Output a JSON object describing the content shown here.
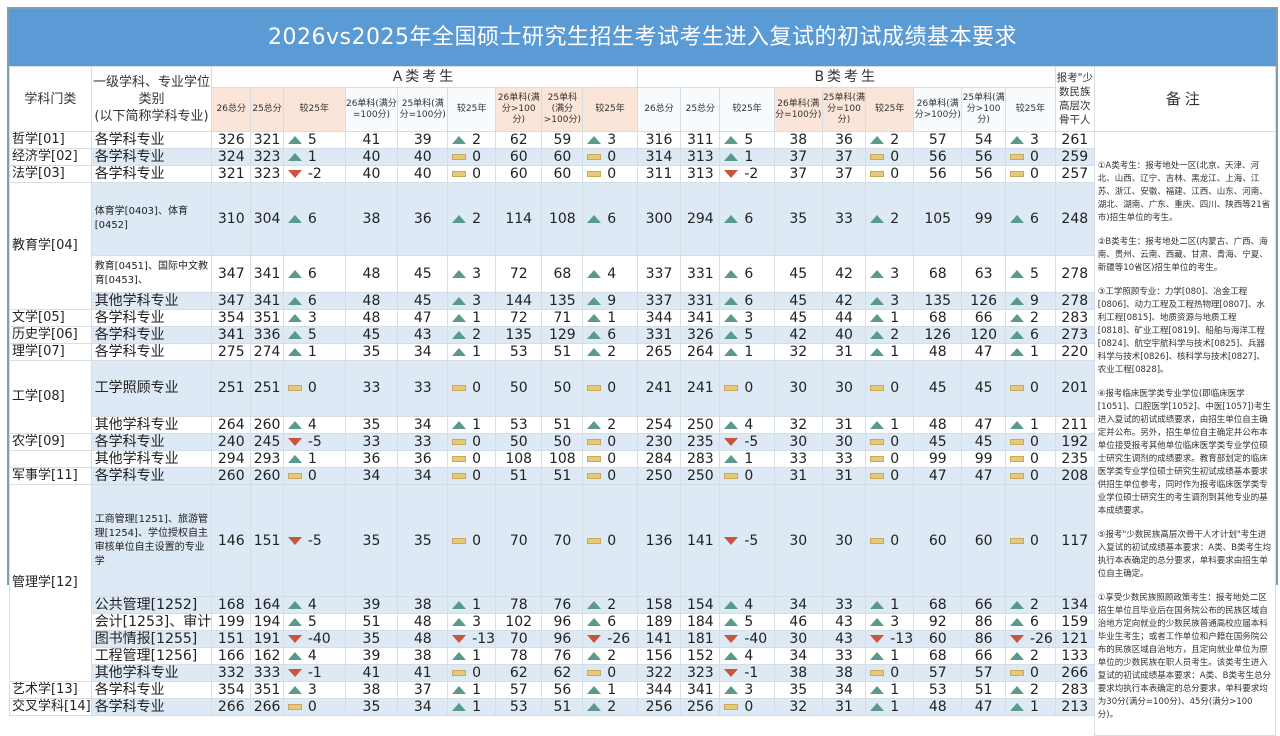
{
  "title": "2026vs2025年全国硕士研究生招生考试考生进入复试的初试成绩基本要求",
  "headers": {
    "category": "学科门类",
    "major": [
      "一级学科、专业学位",
      "类别",
      "(以下简称学科专业)"
    ],
    "group_a": "A类考生",
    "group_b": "B类考生",
    "minority": "报考\"少数民族高层次骨干人",
    "remark": "备注",
    "a_cols": [
      "26总分",
      "25总分",
      "较25年",
      "26单科(满分=100分)",
      "25单科(满分=100分)",
      "较25年",
      "26单科(满分>100分)",
      "25单科(满分>100分)",
      "较25年"
    ],
    "b_cols": [
      "26总分",
      "25总分",
      "较25年",
      "26单科(满分=100分)",
      "25单科(满分=100分)",
      "较25年",
      "26单科(满分>100分)",
      "25单科(满分>100分)",
      "较25年"
    ]
  },
  "rows": [
    {
      "cat": "哲学[01]",
      "major": "各学科专业",
      "a": [
        326,
        321,
        "5",
        41,
        39,
        "2",
        62,
        59,
        "3"
      ],
      "at": [
        "up",
        "up",
        "up"
      ],
      "b": [
        316,
        311,
        "5",
        38,
        36,
        "2",
        57,
        54,
        "3"
      ],
      "bt": [
        "up",
        "up",
        "up"
      ],
      "min": 261
    },
    {
      "cat": "经济学[02]",
      "major": "各学科专业",
      "a": [
        324,
        323,
        "1",
        40,
        40,
        "0",
        60,
        60,
        "0"
      ],
      "at": [
        "up",
        "flat",
        "flat"
      ],
      "b": [
        314,
        313,
        "1",
        37,
        37,
        "0",
        56,
        56,
        "0"
      ],
      "bt": [
        "up",
        "flat",
        "flat"
      ],
      "min": 259
    },
    {
      "cat": "法学[03]",
      "major": "各学科专业",
      "a": [
        321,
        323,
        "-2",
        40,
        40,
        "0",
        60,
        60,
        "0"
      ],
      "at": [
        "down",
        "flat",
        "flat"
      ],
      "b": [
        311,
        313,
        "-2",
        37,
        37,
        "0",
        56,
        56,
        "0"
      ],
      "bt": [
        "down",
        "flat",
        "flat"
      ],
      "min": 257
    },
    {
      "cat": "教育学[04]",
      "major": "体育学[0403]、体育[0452]",
      "a": [
        310,
        304,
        "6",
        38,
        36,
        "2",
        114,
        108,
        "6"
      ],
      "at": [
        "up",
        "up",
        "up"
      ],
      "b": [
        300,
        294,
        "6",
        35,
        33,
        "2",
        105,
        99,
        "6"
      ],
      "bt": [
        "up",
        "up",
        "up"
      ],
      "min": 248
    },
    {
      "cat": "",
      "major": "教育[0451]、国际中文教育[0453]、",
      "a": [
        347,
        341,
        "6",
        48,
        45,
        "3",
        72,
        68,
        "4"
      ],
      "at": [
        "up",
        "up",
        "up"
      ],
      "b": [
        337,
        331,
        "6",
        45,
        42,
        "3",
        68,
        63,
        "5"
      ],
      "bt": [
        "up",
        "up",
        "up"
      ],
      "min": 278
    },
    {
      "cat": "",
      "major": "其他学科专业",
      "a": [
        347,
        341,
        "6",
        48,
        45,
        "3",
        144,
        135,
        "9"
      ],
      "at": [
        "up",
        "up",
        "up"
      ],
      "b": [
        337,
        331,
        "6",
        45,
        42,
        "3",
        135,
        126,
        "9"
      ],
      "bt": [
        "up",
        "up",
        "up"
      ],
      "min": 278
    },
    {
      "cat": "文学[05]",
      "major": "各学科专业",
      "a": [
        354,
        351,
        "3",
        48,
        47,
        "1",
        72,
        71,
        "1"
      ],
      "at": [
        "up",
        "up",
        "up"
      ],
      "b": [
        344,
        341,
        "3",
        45,
        44,
        "1",
        68,
        66,
        "2"
      ],
      "bt": [
        "up",
        "up",
        "up"
      ],
      "min": 283
    },
    {
      "cat": "历史学[06]",
      "major": "各学科专业",
      "a": [
        341,
        336,
        "5",
        45,
        43,
        "2",
        135,
        129,
        "6"
      ],
      "at": [
        "up",
        "up",
        "up"
      ],
      "b": [
        331,
        326,
        "5",
        42,
        40,
        "2",
        126,
        120,
        "6"
      ],
      "bt": [
        "up",
        "up",
        "up"
      ],
      "min": 273
    },
    {
      "cat": "理学[07]",
      "major": "各学科专业",
      "a": [
        275,
        274,
        "1",
        35,
        34,
        "1",
        53,
        51,
        "2"
      ],
      "at": [
        "up",
        "up",
        "up"
      ],
      "b": [
        265,
        264,
        "1",
        32,
        31,
        "1",
        48,
        47,
        "1"
      ],
      "bt": [
        "up",
        "up",
        "up"
      ],
      "min": 220
    },
    {
      "cat": "工学[08]",
      "major": "工学照顾专业",
      "a": [
        251,
        251,
        "0",
        33,
        33,
        "0",
        50,
        50,
        "0"
      ],
      "at": [
        "flat",
        "flat",
        "flat"
      ],
      "b": [
        241,
        241,
        "0",
        30,
        30,
        "0",
        45,
        45,
        "0"
      ],
      "bt": [
        "flat",
        "flat",
        "flat"
      ],
      "min": 201
    },
    {
      "cat": "",
      "major": "其他学科专业",
      "a": [
        264,
        260,
        "4",
        35,
        34,
        "1",
        53,
        51,
        "2"
      ],
      "at": [
        "up",
        "up",
        "up"
      ],
      "b": [
        254,
        250,
        "4",
        32,
        31,
        "1",
        48,
        47,
        "1"
      ],
      "bt": [
        "up",
        "up",
        "up"
      ],
      "min": 211
    },
    {
      "cat": "农学[09]",
      "major": "各学科专业",
      "a": [
        240,
        245,
        "-5",
        33,
        33,
        "0",
        50,
        50,
        "0"
      ],
      "at": [
        "down",
        "flat",
        "flat"
      ],
      "b": [
        230,
        235,
        "-5",
        30,
        30,
        "0",
        45,
        45,
        "0"
      ],
      "bt": [
        "down",
        "flat",
        "flat"
      ],
      "min": 192
    },
    {
      "cat": "",
      "major": "其他学科专业",
      "a": [
        294,
        293,
        "1",
        36,
        36,
        "0",
        108,
        108,
        "0"
      ],
      "at": [
        "up",
        "flat",
        "flat"
      ],
      "b": [
        284,
        283,
        "1",
        33,
        33,
        "0",
        99,
        99,
        "0"
      ],
      "bt": [
        "up",
        "flat",
        "flat"
      ],
      "min": 235
    },
    {
      "cat": "军事学[11]",
      "major": "各学科专业",
      "a": [
        260,
        260,
        "0",
        34,
        34,
        "0",
        51,
        51,
        "0"
      ],
      "at": [
        "flat",
        "flat",
        "flat"
      ],
      "b": [
        250,
        250,
        "0",
        31,
        31,
        "0",
        47,
        47,
        "0"
      ],
      "bt": [
        "flat",
        "flat",
        "flat"
      ],
      "min": 208
    },
    {
      "cat": "",
      "major": "工商管理[1251]、旅游管理[1254]、学位授权自主审核单位自主设置的专业学",
      "a": [
        146,
        151,
        "-5",
        35,
        35,
        "0",
        70,
        70,
        "0"
      ],
      "at": [
        "down",
        "flat",
        "flat"
      ],
      "b": [
        136,
        141,
        "-5",
        30,
        30,
        "0",
        60,
        60,
        "0"
      ],
      "bt": [
        "down",
        "flat",
        "flat"
      ],
      "min": 117
    },
    {
      "cat": "管理学[12]",
      "major": "公共管理[1252]",
      "a": [
        168,
        164,
        "4",
        39,
        38,
        "1",
        78,
        76,
        "2"
      ],
      "at": [
        "up",
        "up",
        "up"
      ],
      "b": [
        158,
        154,
        "4",
        34,
        33,
        "1",
        68,
        66,
        "2"
      ],
      "bt": [
        "up",
        "up",
        "up"
      ],
      "min": 134
    },
    {
      "cat": "",
      "major": "会计[1253]、审计",
      "a": [
        199,
        194,
        "5",
        51,
        48,
        "3",
        102,
        96,
        "6"
      ],
      "at": [
        "up",
        "up",
        "up"
      ],
      "b": [
        189,
        184,
        "5",
        46,
        43,
        "3",
        92,
        86,
        "6"
      ],
      "bt": [
        "up",
        "up",
        "up"
      ],
      "min": 159
    },
    {
      "cat": "",
      "major": "图书情报[1255]",
      "a": [
        151,
        191,
        "-40",
        35,
        48,
        "-13",
        70,
        96,
        "-26"
      ],
      "at": [
        "down",
        "down",
        "down"
      ],
      "b": [
        141,
        181,
        "-40",
        30,
        43,
        "-13",
        60,
        86,
        "-26"
      ],
      "bt": [
        "down",
        "down",
        "down"
      ],
      "min": 121
    },
    {
      "cat": "",
      "major": "工程管理[1256]",
      "a": [
        166,
        162,
        "4",
        39,
        38,
        "1",
        78,
        76,
        "2"
      ],
      "at": [
        "up",
        "up",
        "up"
      ],
      "b": [
        156,
        152,
        "4",
        34,
        33,
        "1",
        68,
        66,
        "2"
      ],
      "bt": [
        "up",
        "up",
        "up"
      ],
      "min": 133
    },
    {
      "cat": "",
      "major": "其他学科专业",
      "a": [
        332,
        333,
        "-1",
        41,
        41,
        "0",
        62,
        62,
        "0"
      ],
      "at": [
        "down",
        "flat",
        "flat"
      ],
      "b": [
        322,
        323,
        "-1",
        38,
        38,
        "0",
        57,
        57,
        "0"
      ],
      "bt": [
        "down",
        "flat",
        "flat"
      ],
      "min": 266
    },
    {
      "cat": "艺术学[13]",
      "major": "各学科专业",
      "a": [
        354,
        351,
        "3",
        38,
        37,
        "1",
        57,
        56,
        "1"
      ],
      "at": [
        "up",
        "up",
        "up"
      ],
      "b": [
        344,
        341,
        "3",
        35,
        34,
        "1",
        53,
        51,
        "2"
      ],
      "bt": [
        "up",
        "up",
        "up"
      ],
      "min": 283
    },
    {
      "cat": "交叉学科[14]",
      "major": "各学科专业",
      "a": [
        266,
        266,
        "0",
        35,
        34,
        "1",
        53,
        51,
        "2"
      ],
      "at": [
        "flat",
        "up",
        "up"
      ],
      "b": [
        256,
        256,
        "0",
        32,
        31,
        "1",
        48,
        47,
        "1"
      ],
      "bt": [
        "flat",
        "up",
        "up"
      ],
      "min": 213
    }
  ],
  "notes": [
    "①A类考生：报考地处一区(北京、天津、河北、山西、辽宁、吉林、黑龙江、上海、江苏、浙江、安徽、福建、江西、山东、河南、湖北、湖南、广东、重庆、四川、陕西等21省市)招生单位的考生。",
    "②B类考生：报考地处二区(内蒙古、广西、海南、贵州、云南、西藏、甘肃、青海、宁夏、新疆等10省区)招生单位的考生。",
    "③工学照顾专业：力学[080]、冶金工程[0806]、动力工程及工程热物理[0807]、水利工程[0815]、地质资源与地质工程[0818]、矿业工程[0819]、船舶与海洋工程[0824]、航空宇航科学与技术[0825]、兵器科学与技术[0826]、核科学与技术[0827]、农业工程[0828]。",
    "④报考临床医学类专业学位(即临床医学[1051]、口腔医学[1052]、中医[1057])考生进入复试的初试成绩要求，由招生单位自主确定并公布。另外，招生单位自主确定并公布本单位接受报考其他单位临床医学类专业学位硕士研究生调剂的成绩要求。教育部划定的临床医学类专业学位硕士研究生初试成绩基本要求供招生单位参考，同时作为报考临床医学类专业学位硕士研究生的考生调剂到其他专业的基本成绩要求。",
    "⑤报考\"少数民族高层次骨干人才计划\"考生进入复试的初试成绩基本要求：A类、B类考生均执行本表确定的总分要求，单科要求由招生单位自主确定。",
    "①享受少数民族照顾政策考生：报考地处二区招生单位且毕业后在国务院公布的民族区域自治地方定向就业的少数民族普通高校应届本科毕业生考生；或者工作单位和户籍在国务院公布的民族区域自治地方，且定向就业单位为原单位的少数民族在职人员考生。该类考生进入复试的初试成绩基本要求：A类、B类考生总分要求均执行本表确定的总分要求，单科要求均为30分(满分=100分)、45分(满分>100分)。"
  ],
  "colors": {
    "title_bg": "#5b9bd5",
    "header_pink": "#fbe4d8",
    "row_alt": "#dde9f5",
    "up": "#5a9a8c",
    "down": "#c8553d",
    "flat": "#e8c97a"
  }
}
